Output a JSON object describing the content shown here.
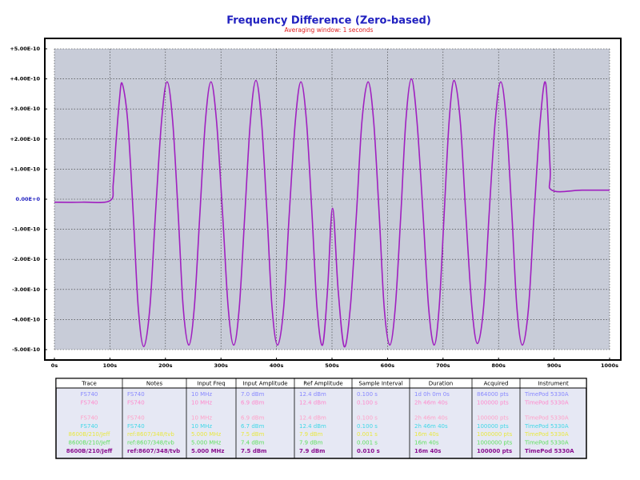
{
  "chart_data": {
    "type": "line",
    "title": "Frequency Difference (Zero-based)",
    "subtitle": "Averaging window: 1 seconds",
    "color": "#a020c0",
    "grid": true,
    "xlim": [
      0,
      1000
    ],
    "ylim": [
      -5e-10,
      5e-10
    ],
    "xticks": [
      {
        "value": 0,
        "label": "0s"
      },
      {
        "value": 100,
        "label": "100s"
      },
      {
        "value": 200,
        "label": "200s"
      },
      {
        "value": 300,
        "label": "300s"
      },
      {
        "value": 400,
        "label": "400s"
      },
      {
        "value": 500,
        "label": "500s"
      },
      {
        "value": 600,
        "label": "600s"
      },
      {
        "value": 700,
        "label": "700s"
      },
      {
        "value": 800,
        "label": "800s"
      },
      {
        "value": 900,
        "label": "900s"
      },
      {
        "value": 1000,
        "label": "1000s"
      }
    ],
    "yticks": [
      {
        "value": 5e-10,
        "label": "+5.00E-10"
      },
      {
        "value": 4e-10,
        "label": "+4.00E-10"
      },
      {
        "value": 3e-10,
        "label": "+3.00E-10"
      },
      {
        "value": 2e-10,
        "label": "+2.00E-10"
      },
      {
        "value": 1e-10,
        "label": "+1.00E-10"
      },
      {
        "value": 0,
        "label": "0.00E+0"
      },
      {
        "value": -1e-10,
        "label": "-1.00E-10"
      },
      {
        "value": -2e-10,
        "label": "-2.00E-10"
      },
      {
        "value": -3e-10,
        "label": "-3.00E-10"
      },
      {
        "value": -4e-10,
        "label": "-4.00E-10"
      },
      {
        "value": -5e-10,
        "label": "-5.00E-10"
      }
    ],
    "x": [
      0,
      50,
      100,
      106,
      111,
      117,
      122,
      132,
      142,
      151,
      161,
      172,
      182,
      193,
      203,
      213,
      223,
      232,
      242,
      252,
      262,
      272,
      282,
      292,
      303,
      313,
      323,
      333,
      343,
      353,
      363,
      373,
      383,
      392,
      402,
      413,
      423,
      434,
      444,
      454,
      464,
      473,
      483,
      492,
      501,
      511,
      522,
      533,
      544,
      554,
      565,
      575,
      585,
      594,
      604,
      614,
      624,
      633,
      643,
      653,
      664,
      674,
      684,
      693,
      702,
      711,
      720,
      731,
      741,
      752,
      762,
      773,
      783,
      794,
      804,
      814,
      824,
      833,
      843,
      854,
      864,
      875,
      885,
      893,
      896,
      950,
      1000
    ],
    "values": [
      -1e-11,
      -1e-11,
      -5e-12,
      5.2e-11,
      1.9e-10,
      3.28e-10,
      3.85e-10,
      2.6e-10,
      -5e-11,
      -3.6e-10,
      -4.9e-10,
      -3.6e-10,
      -5e-11,
      2.6e-10,
      3.9e-10,
      2.6e-10,
      -5e-11,
      -3.6e-10,
      -4.85e-10,
      -3.6e-10,
      -5e-11,
      2.6e-10,
      3.9e-10,
      2.6e-10,
      -5e-11,
      -3.6e-10,
      -4.85e-10,
      -3.6e-10,
      -5e-11,
      2.6e-10,
      3.95e-10,
      2.6e-10,
      -5e-11,
      -3.6e-10,
      -4.85e-10,
      -3.6e-10,
      -5e-11,
      2.6e-10,
      3.9e-10,
      2.6e-10,
      -5e-11,
      -3.6e-10,
      -4.85e-10,
      -3e-10,
      -3e-11,
      -3e-10,
      -4.9e-10,
      -3.6e-10,
      -5e-11,
      2.6e-10,
      3.9e-10,
      2.6e-10,
      -5e-11,
      -3.6e-10,
      -4.85e-10,
      -3.6e-10,
      -5e-11,
      2.6e-10,
      4e-10,
      2.6e-10,
      -5e-11,
      -3.6e-10,
      -4.85e-10,
      -3.6e-10,
      -5e-11,
      2.6e-10,
      3.95e-10,
      2.6e-10,
      -5e-11,
      -3.6e-10,
      -4.8e-10,
      -3.6e-10,
      -5e-11,
      2.6e-10,
      3.9e-10,
      2.6e-10,
      -5e-11,
      -3.6e-10,
      -4.85e-10,
      -3.6e-10,
      -5e-11,
      2.6e-10,
      3.85e-10,
      1e-10,
      3e-11,
      3e-11,
      3e-11
    ]
  },
  "table": {
    "columns": [
      "Trace",
      "Notes",
      "Input Freq",
      "Input Amplitude",
      "Ref Amplitude",
      "Sample Interval",
      "Duration",
      "Acquired",
      "Instrument"
    ],
    "rows": [
      {
        "color": "#8888ff",
        "cells": [
          "FS740",
          "FS740",
          "10 MHz",
          "7.0 dBm",
          "12.4 dBm",
          "0.100 s",
          "1d 0h 0m 0s",
          "864000 pts",
          "TimePod 5330A"
        ]
      },
      {
        "color": "#ff88cc",
        "cells": [
          "FS740",
          "FS740",
          "10 MHz",
          "6.9 dBm",
          "12.4 dBm",
          "0.100 s",
          "2h 46m 40s",
          "100000 pts",
          "TimePod 5330A"
        ]
      },
      {
        "color": "#ffa0c8",
        "cells": [
          "FS740",
          "FS740",
          "10 MHz",
          "6.9 dBm",
          "12.4 dBm",
          "0.100 s",
          "2h 46m 40s",
          "100000 pts",
          "TimePod 5330A"
        ]
      },
      {
        "color": "#40d8e8",
        "cells": [
          "FS740",
          "FS740",
          "10 MHz",
          "6.7 dBm",
          "12.4 dBm",
          "0.100 s",
          "2h 46m 40s",
          "100000 pts",
          "TimePod 5330A"
        ]
      },
      {
        "color": "#e8e840",
        "cells": [
          "8600B/210/Jeff",
          "ref:8607/348/tvb",
          "5.000 MHz",
          "7.5 dBm",
          "7.9 dBm",
          "0.001 s",
          "16m 40s",
          "1000000 pts",
          "TimePod 5330A"
        ]
      },
      {
        "color": "#60e060",
        "cells": [
          "8600B/210/Jeff",
          "ref:8607/348/tvb",
          "5.000 MHz",
          "7.4 dBm",
          "7.9 dBm",
          "0.001 s",
          "16m 40s",
          "1000000 pts",
          "TimePod 5330A"
        ]
      },
      {
        "color": "#8a1090",
        "cells": [
          "8600B/210/Jeff",
          "ref:8607/348/tvb",
          "5.000 MHz",
          "7.5 dBm",
          "7.9 dBm",
          "0.010 s",
          "16m 40s",
          "100000 pts",
          "TimePod 5330A"
        ]
      }
    ]
  }
}
